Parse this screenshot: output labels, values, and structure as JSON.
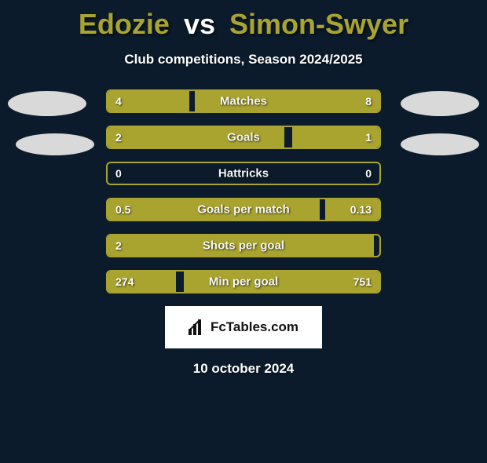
{
  "title": {
    "player1": "Edozie",
    "vs": "vs",
    "player2": "Simon-Swyer"
  },
  "subtitle": "Club competitions, Season 2024/2025",
  "colors": {
    "background": "#0b1b2b",
    "player1": "#a9a42f",
    "player2": "#a9a42f",
    "bar_border": "#a9a42f",
    "text": "#ffffff"
  },
  "bars": [
    {
      "label": "Matches",
      "left_val": "4",
      "right_val": "8",
      "left_pct": 30,
      "right_pct": 68
    },
    {
      "label": "Goals",
      "left_val": "2",
      "right_val": "1",
      "left_pct": 65,
      "right_pct": 32
    },
    {
      "label": "Hattricks",
      "left_val": "0",
      "right_val": "0",
      "left_pct": 0,
      "right_pct": 0
    },
    {
      "label": "Goals per match",
      "left_val": "0.5",
      "right_val": "0.13",
      "left_pct": 78,
      "right_pct": 20
    },
    {
      "label": "Shots per goal",
      "left_val": "2",
      "right_val": "",
      "left_pct": 98,
      "right_pct": 0
    },
    {
      "label": "Min per goal",
      "left_val": "274",
      "right_val": "751",
      "left_pct": 25,
      "right_pct": 72
    }
  ],
  "logo_text": "FcTables.com",
  "date": "10 october 2024"
}
